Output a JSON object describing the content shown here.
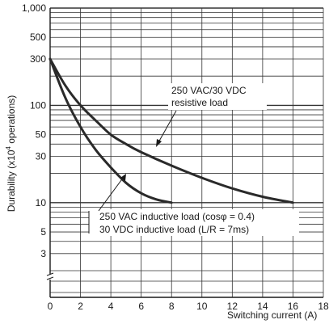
{
  "chart_data": {
    "type": "line",
    "xlabel": "Switching current (A)",
    "ylabel_main": "Durability (x10",
    "ylabel_sup": "4",
    "ylabel_tail": " operations)",
    "x_ticks": [
      0,
      2,
      4,
      6,
      8,
      10,
      12,
      14,
      16,
      18
    ],
    "y_ticks": [
      3,
      5,
      10,
      30,
      50,
      100,
      300,
      500,
      1000
    ],
    "y_tick_labels": [
      "3",
      "5",
      "10",
      "30",
      "50",
      "100",
      "300",
      "500",
      "1,000"
    ],
    "xlim": [
      0,
      18
    ],
    "ylim": [
      1,
      1000
    ],
    "y_scale": "log",
    "axis_break": "lower y-axis",
    "grid": true,
    "series": [
      {
        "label_lines": [
          "250 VAC/30 VDC",
          "resistive load"
        ],
        "color": "#2a2a2a",
        "x": [
          0,
          1,
          2,
          3,
          4,
          5,
          6,
          8,
          10,
          12,
          14,
          16
        ],
        "y": [
          300,
          160,
          100,
          70,
          50,
          40,
          33,
          24,
          18,
          14,
          11.5,
          10
        ]
      },
      {
        "label_lines": [
          "250 VAC inductive load (cosφ = 0.4)",
          "30 VDC inductive load (L/R = 7ms)"
        ],
        "color": "#2a2a2a",
        "x": [
          0,
          1,
          2,
          3,
          4,
          5,
          6,
          7,
          8
        ],
        "y": [
          300,
          120,
          60,
          35,
          23,
          16,
          12.5,
          10.8,
          10
        ]
      }
    ]
  }
}
